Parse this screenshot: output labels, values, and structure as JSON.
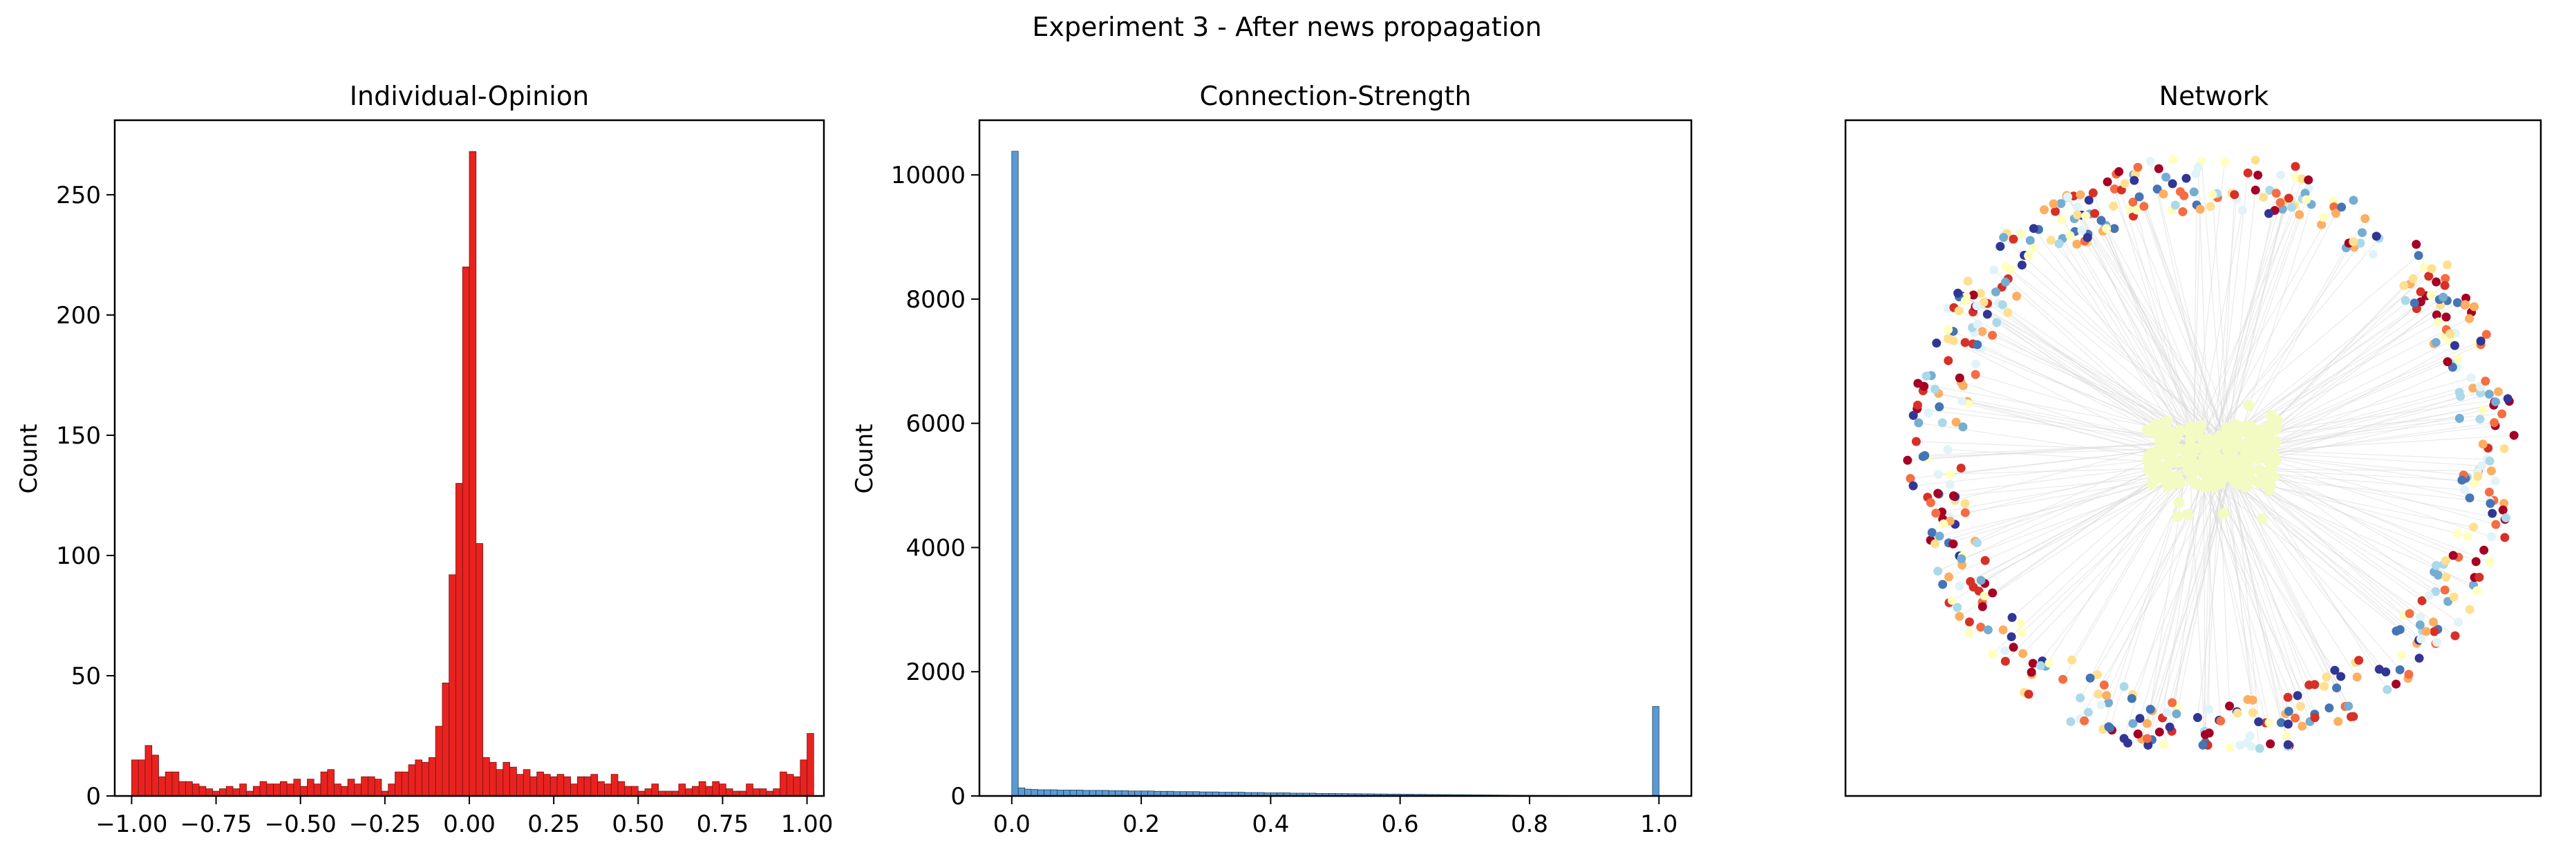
{
  "figure": {
    "suptitle": "Experiment 3 - After news propagation"
  },
  "chart_data": [
    {
      "type": "bar",
      "title": "Individual-Opinion",
      "xlabel": "",
      "ylabel": "Count",
      "xlim": [
        -1.05,
        1.05
      ],
      "ylim": [
        0,
        281
      ],
      "xticks": [
        -1.0,
        -0.75,
        -0.5,
        -0.25,
        0.0,
        0.25,
        0.5,
        0.75,
        1.0
      ],
      "xtick_labels": [
        "−1.00",
        "−0.75",
        "−0.50",
        "−0.25",
        "0.00",
        "0.25",
        "0.50",
        "0.75",
        "1.00"
      ],
      "yticks": [
        0,
        50,
        100,
        150,
        200,
        250
      ],
      "ytick_labels": [
        "0",
        "50",
        "100",
        "150",
        "200",
        "250"
      ],
      "bin_start": -1.0,
      "bin_width": 0.02,
      "color": "#e8231f",
      "edgecolor": "#7a1010",
      "values": [
        15,
        15,
        21,
        17,
        8,
        10,
        10,
        6,
        6,
        5,
        4,
        3,
        2,
        3,
        4,
        3,
        5,
        2,
        4,
        6,
        5,
        5,
        6,
        5,
        7,
        4,
        7,
        5,
        10,
        11,
        5,
        4,
        7,
        5,
        8,
        8,
        7,
        2,
        5,
        10,
        10,
        13,
        15,
        14,
        16,
        29,
        47,
        92,
        130,
        220,
        268,
        105,
        16,
        14,
        11,
        14,
        12,
        9,
        11,
        8,
        10,
        9,
        8,
        9,
        8,
        5,
        8,
        8,
        9,
        6,
        5,
        9,
        6,
        4,
        4,
        2,
        3,
        5,
        2,
        2,
        2,
        5,
        3,
        4,
        6,
        4,
        6,
        5,
        3,
        2,
        2,
        5,
        3,
        3,
        2,
        3,
        10,
        9,
        8,
        15,
        26
      ],
      "grid": false,
      "legend": "none"
    },
    {
      "type": "bar",
      "title": "Connection-Strength",
      "xlabel": "",
      "ylabel": "Count",
      "xlim": [
        -0.05,
        1.05
      ],
      "ylim": [
        0,
        10880
      ],
      "xticks": [
        0.0,
        0.2,
        0.4,
        0.6,
        0.8,
        1.0
      ],
      "xtick_labels": [
        "0.0",
        "0.2",
        "0.4",
        "0.6",
        "0.8",
        "1.0"
      ],
      "yticks": [
        0,
        2000,
        4000,
        6000,
        8000,
        10000
      ],
      "ytick_labels": [
        "0",
        "2000",
        "4000",
        "6000",
        "8000",
        "10000"
      ],
      "bin_start": 0.0,
      "bin_width": 0.01,
      "color": "#5b9bd5",
      "edgecolor": "#1f3d5c",
      "values": [
        10380,
        130,
        110,
        105,
        100,
        100,
        100,
        95,
        95,
        95,
        95,
        90,
        90,
        90,
        90,
        85,
        85,
        85,
        80,
        80,
        80,
        80,
        75,
        75,
        75,
        70,
        70,
        70,
        70,
        65,
        65,
        65,
        60,
        60,
        60,
        60,
        55,
        55,
        55,
        50,
        50,
        50,
        50,
        45,
        45,
        45,
        45,
        40,
        40,
        40,
        38,
        38,
        36,
        36,
        34,
        34,
        32,
        32,
        30,
        30,
        28,
        28,
        26,
        26,
        24,
        24,
        22,
        22,
        20,
        20,
        19,
        18,
        17,
        16,
        15,
        14,
        13,
        12,
        11,
        10,
        10,
        9,
        9,
        8,
        8,
        7,
        7,
        6,
        6,
        5,
        5,
        5,
        4,
        4,
        4,
        3,
        3,
        3,
        2,
        1440
      ],
      "grid": false,
      "legend": "none"
    },
    {
      "type": "network",
      "title": "Network",
      "node_colors": [
        "#313695",
        "#4575b4",
        "#74add1",
        "#abd9e9",
        "#e0f3f8",
        "#ffffbf",
        "#fee090",
        "#fdae61",
        "#f46d43",
        "#d73027",
        "#a50026"
      ],
      "center_cluster_color": "#f4fbc2",
      "edge_color": "#d9d9d9",
      "axes_visible": false
    }
  ]
}
